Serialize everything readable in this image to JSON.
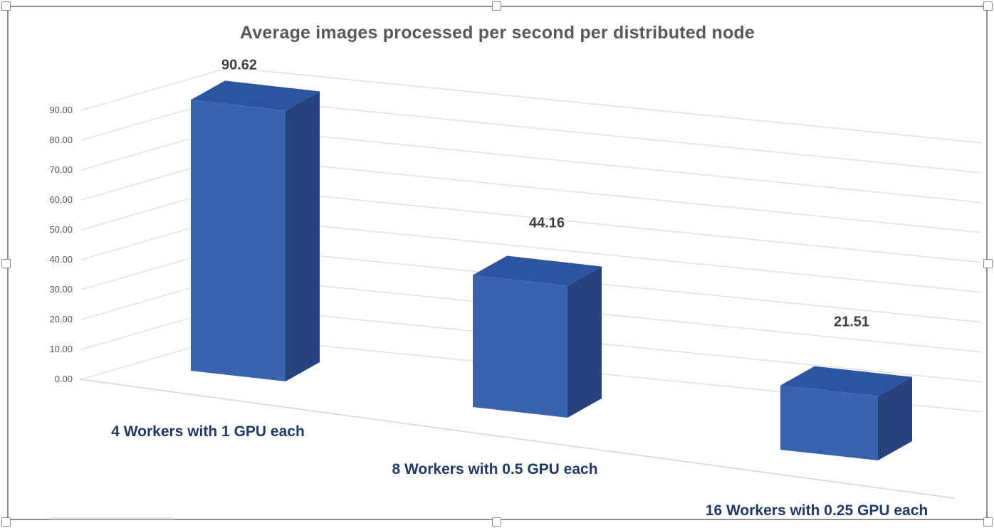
{
  "window": {
    "background": "#FFFFFF",
    "selected_object": "chart"
  },
  "chart_data": {
    "type": "bar",
    "variant": "3d-column",
    "title": "Average images processed per second per distributed node",
    "categories": [
      "4 Workers with 1 GPU each",
      "8 Workers with 0.5 GPU each",
      "16 Workers with 0.25 GPU each"
    ],
    "values": [
      90.62,
      44.16,
      21.51
    ],
    "data_labels": [
      "90.62",
      "44.16",
      "21.51"
    ],
    "xlabel": "",
    "ylabel": "",
    "ylim": [
      0,
      90
    ],
    "ytick_step": 10,
    "yticks": [
      "90.00",
      "80.00",
      "70.00",
      "60.00",
      "50.00",
      "40.00",
      "30.00",
      "20.00",
      "10.00",
      "0.00"
    ],
    "grid": true,
    "legend": "none",
    "colors": {
      "bar_front": "#3A63AF",
      "bar_top": "#2D54A0",
      "bar_side": "#27437C",
      "gridline": "#DEDEDE",
      "floor_edge": "#D6D6D6",
      "title_text": "#595959",
      "tick_text": "#595959",
      "data_label_text": "#3F3F3F",
      "category_text": "#1F3864",
      "frame_border": "#8F8F8F",
      "handle_fill": "#FFFFFF",
      "handle_border": "#8A8A8A"
    }
  }
}
